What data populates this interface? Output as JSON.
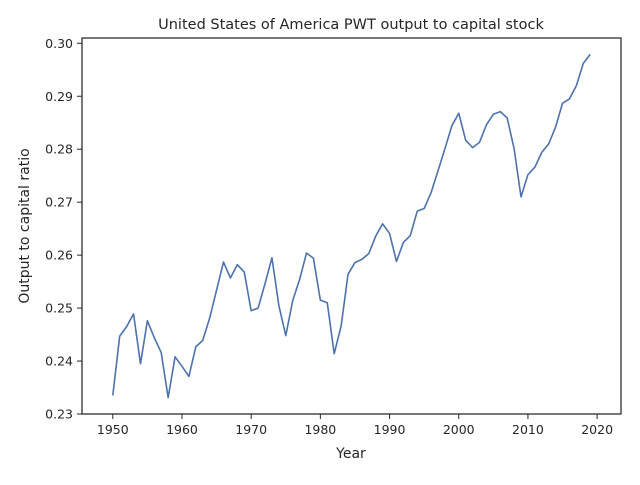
{
  "chart_data": {
    "type": "line",
    "title": "United States of America PWT output to capital stock",
    "xlabel": "Year",
    "ylabel": "Output to capital ratio",
    "xlim": [
      1945.55,
      2023.45
    ],
    "ylim": [
      0.23,
      0.301
    ],
    "xticks": [
      1950,
      1960,
      1970,
      1980,
      1990,
      2000,
      2010,
      2020
    ],
    "yticks": [
      0.23,
      0.24,
      0.25,
      0.26,
      0.27,
      0.28,
      0.29,
      0.3
    ],
    "ytick_labels": [
      "0.23",
      "0.24",
      "0.25",
      "0.26",
      "0.27",
      "0.28",
      "0.29",
      "0.30"
    ],
    "grid": false,
    "legend": "none",
    "line_color": "#4c72b0",
    "series": [
      {
        "x": [
          1950,
          1951,
          1952,
          1953,
          1954,
          1955,
          1956,
          1957,
          1958,
          1959,
          1960,
          1961,
          1962,
          1963,
          1964,
          1965,
          1966,
          1967,
          1968,
          1969,
          1970,
          1971,
          1972,
          1973,
          1974,
          1975,
          1976,
          1977,
          1978,
          1979,
          1980,
          1981,
          1982,
          1983,
          1984,
          1985,
          1986,
          1987,
          1988,
          1989,
          1990,
          1991,
          1992,
          1993,
          1994,
          1995,
          1996,
          1997,
          1998,
          1999,
          2000,
          2001,
          2002,
          2003,
          2004,
          2005,
          2006,
          2007,
          2008,
          2009,
          2010,
          2011,
          2012,
          2013,
          2014,
          2015,
          2016,
          2017,
          2018,
          2019
        ],
        "values": [
          0.2335,
          0.2447,
          0.2465,
          0.2489,
          0.2395,
          0.2476,
          0.2444,
          0.2416,
          0.2331,
          0.2408,
          0.239,
          0.2371,
          0.2427,
          0.2439,
          0.2481,
          0.2534,
          0.2587,
          0.2557,
          0.2582,
          0.2568,
          0.2495,
          0.25,
          0.2546,
          0.2595,
          0.2505,
          0.2448,
          0.2514,
          0.2554,
          0.2604,
          0.2594,
          0.2515,
          0.251,
          0.2414,
          0.2466,
          0.2564,
          0.2586,
          0.2592,
          0.2603,
          0.2636,
          0.2659,
          0.2641,
          0.2588,
          0.2624,
          0.2637,
          0.2683,
          0.2688,
          0.2718,
          0.2759,
          0.2801,
          0.2844,
          0.2868,
          0.2817,
          0.2803,
          0.2813,
          0.2846,
          0.2866,
          0.2871,
          0.2859,
          0.2801,
          0.271,
          0.2752,
          0.2766,
          0.2794,
          0.281,
          0.2842,
          0.2887,
          0.2895,
          0.292,
          0.2962,
          0.2979
        ]
      }
    ]
  }
}
